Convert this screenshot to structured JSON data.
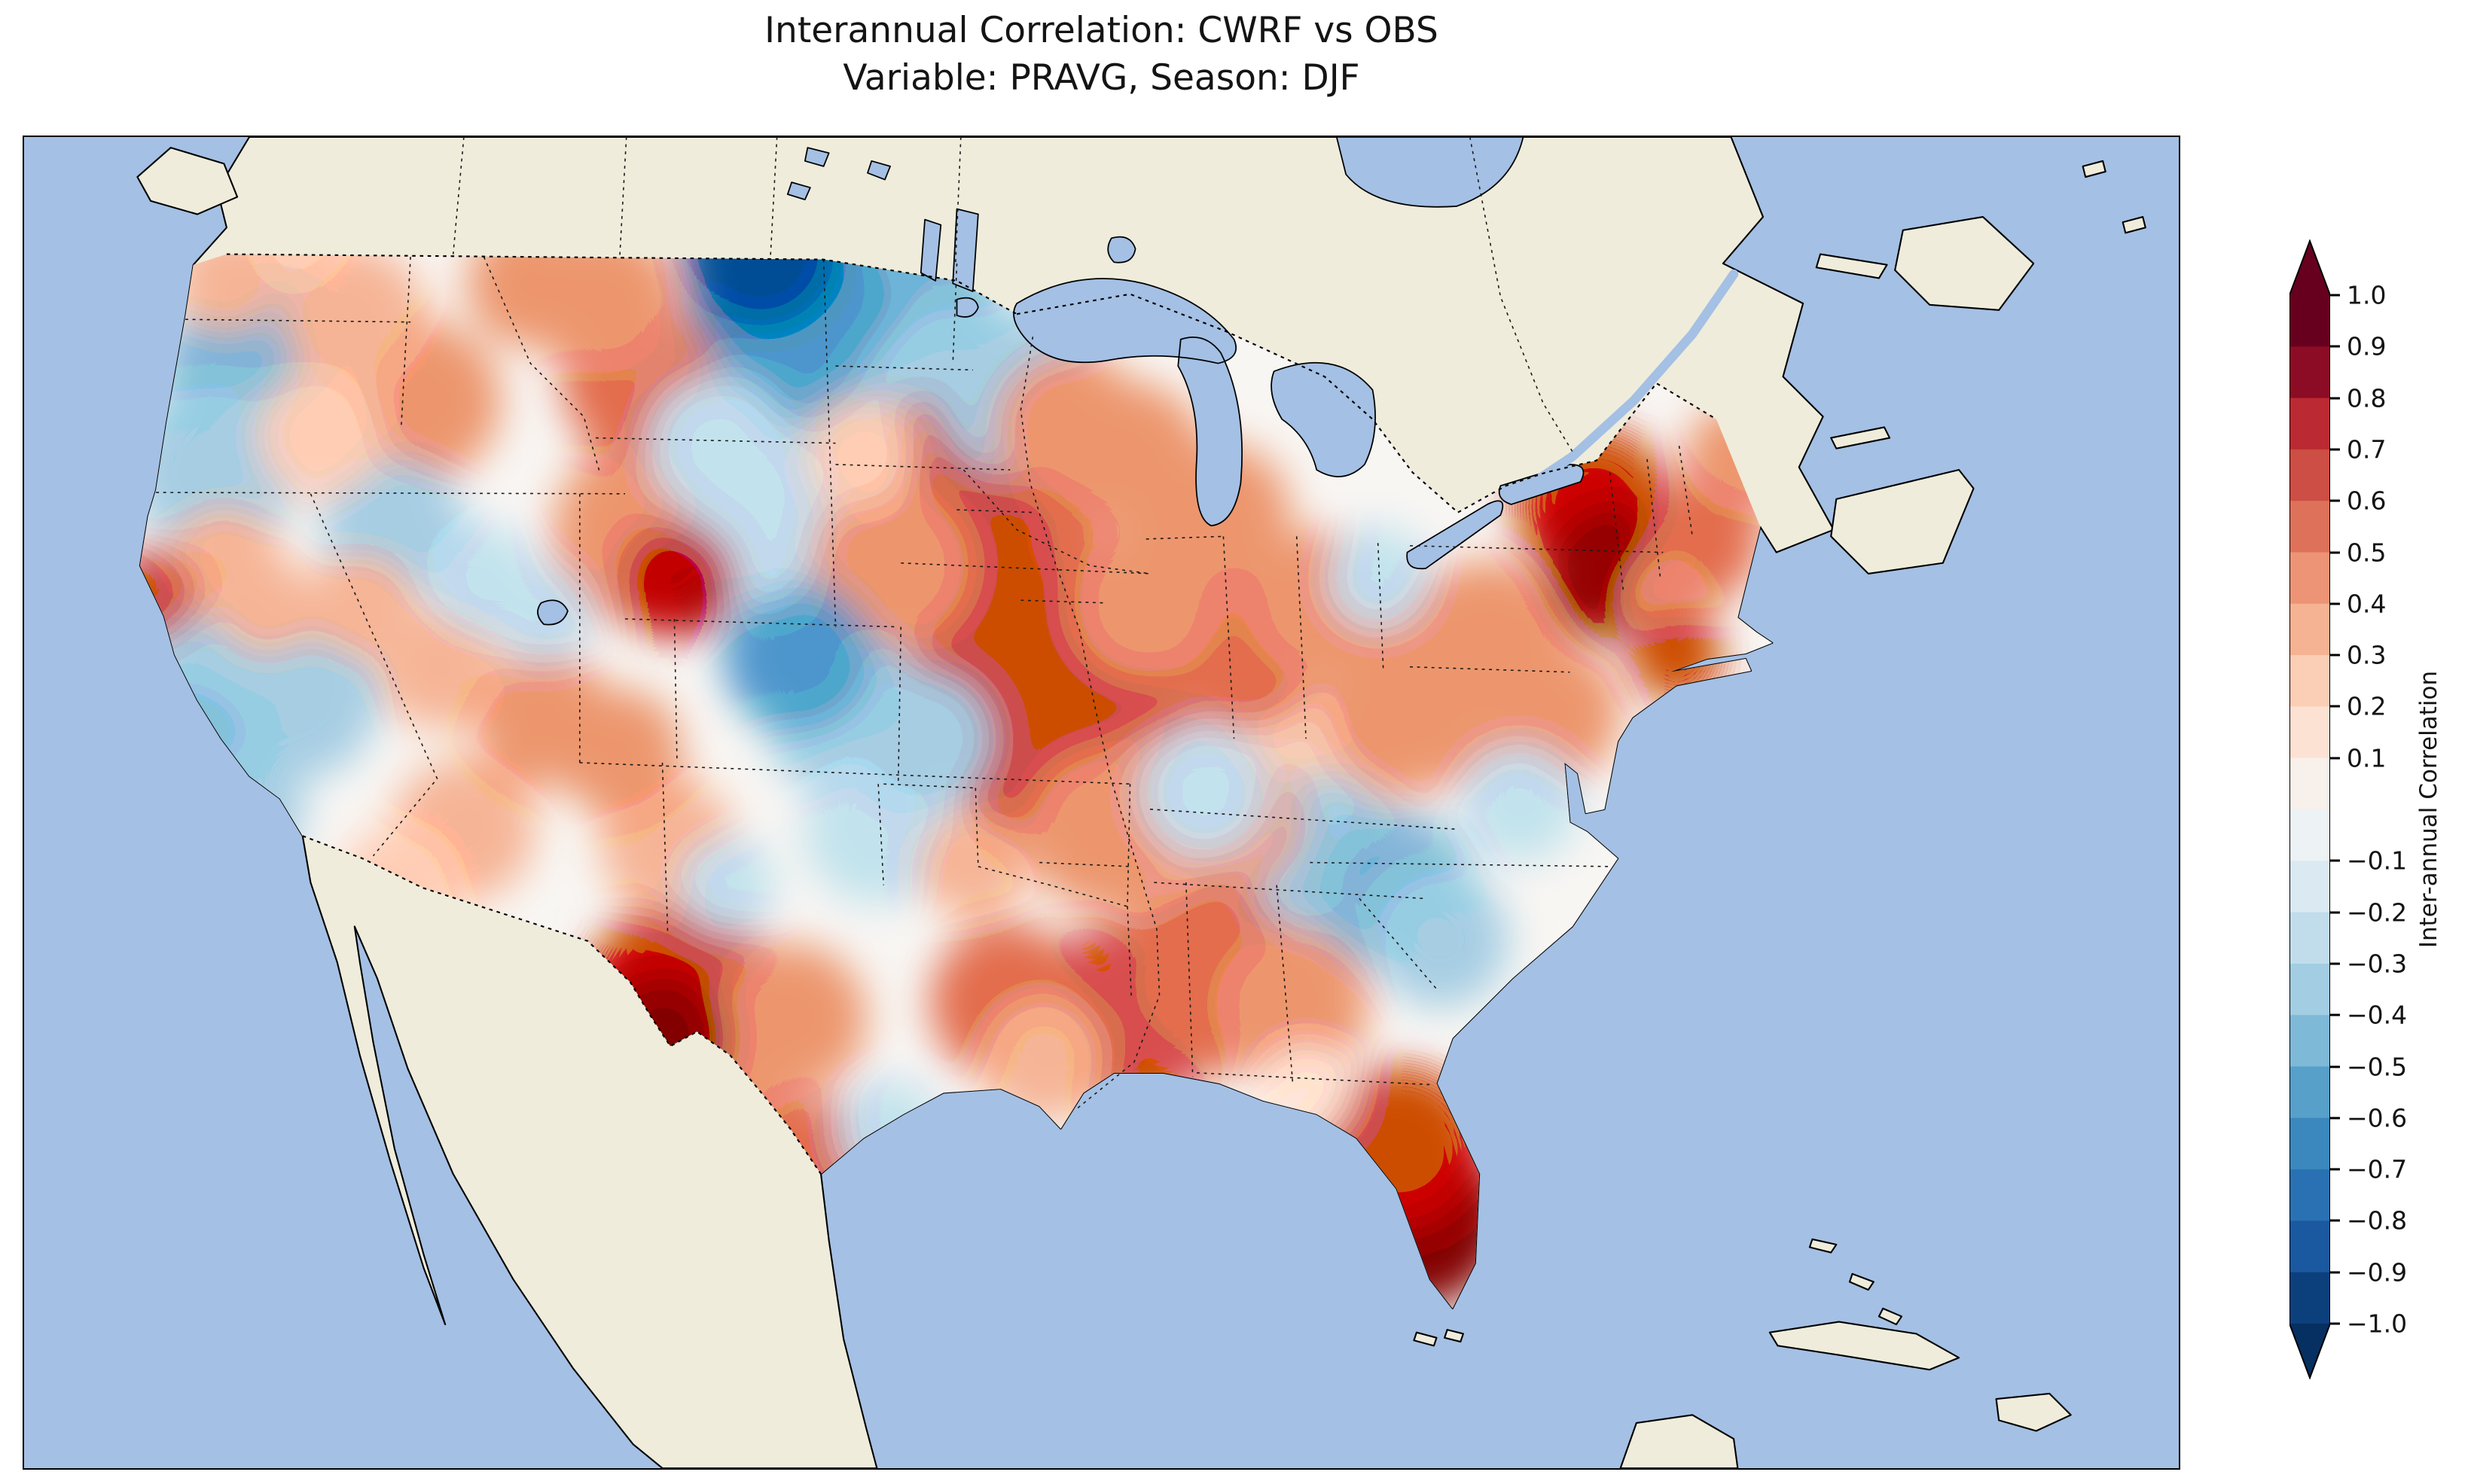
{
  "figure": {
    "title_line1": "Interannual Correlation: CWRF vs OBS",
    "title_line2": "Variable: PRAVG, Season: DJF"
  },
  "colorbar": {
    "label": "Inter-annual Correlation",
    "ticks": [
      {
        "label": "1.0",
        "v": 1.0
      },
      {
        "label": "0.9",
        "v": 0.9
      },
      {
        "label": "0.8",
        "v": 0.8
      },
      {
        "label": "0.7",
        "v": 0.7
      },
      {
        "label": "0.6",
        "v": 0.6
      },
      {
        "label": "0.5",
        "v": 0.5
      },
      {
        "label": "0.4",
        "v": 0.4
      },
      {
        "label": "0.3",
        "v": 0.3
      },
      {
        "label": "0.2",
        "v": 0.2
      },
      {
        "label": "0.1",
        "v": 0.1
      },
      {
        "label": "−0.1",
        "v": -0.1
      },
      {
        "label": "−0.2",
        "v": -0.2
      },
      {
        "label": "−0.3",
        "v": -0.3
      },
      {
        "label": "−0.4",
        "v": -0.4
      },
      {
        "label": "−0.5",
        "v": -0.5
      },
      {
        "label": "−0.6",
        "v": -0.6
      },
      {
        "label": "−0.7",
        "v": -0.7
      },
      {
        "label": "−0.8",
        "v": -0.8
      },
      {
        "label": "−0.9",
        "v": -0.9
      },
      {
        "label": "−1.0",
        "v": -1.0
      }
    ],
    "segment_colors": [
      "#67001f",
      "#8c0c25",
      "#bb2a33",
      "#cd4e44",
      "#de715a",
      "#ec9475",
      "#f6b393",
      "#fbceb6",
      "#fce2d3",
      "#f8f0eb",
      "#edf2f5",
      "#dbe9f2",
      "#c1ddec",
      "#a2cde3",
      "#7eb9d7",
      "#57a0ca",
      "#3a88bd",
      "#2971b2",
      "#1a599f",
      "#0c407c"
    ],
    "extend_over_color": "#67001f",
    "extend_under_color": "#053061"
  },
  "map": {
    "ocean_color": "#a4c0e4",
    "land_color": "#efecdb",
    "field_base_color": "#f8f6f3"
  },
  "chart_data": {
    "type": "heatmap",
    "title": "Interannual Correlation: CWRF vs OBS",
    "subtitle": "Variable: PRAVG, Season: DJF",
    "comparison": "CWRF vs OBS",
    "variable": "PRAVG",
    "season": "DJF",
    "region": "Continental United States",
    "colormap": "RdBu_r",
    "value_range": [
      -1.0,
      1.0
    ],
    "level_step": 0.1,
    "colorbar_label": "Inter-annual Correlation",
    "notable_regions": [
      {
        "region": "South Florida",
        "value": 0.9
      },
      {
        "region": "West Texas / Big Bend",
        "value": 0.85
      },
      {
        "region": "Coastal New York / southern New England",
        "value": 0.8
      },
      {
        "region": "Northern Colorado / Wyoming border",
        "value": 0.75
      },
      {
        "region": "Nebraska–Iowa central Midwest",
        "value": 0.7
      },
      {
        "region": "Missouri / Ozarks",
        "value": 0.65
      },
      {
        "region": "Northern Montana at US–Canada border",
        "value": -0.85
      },
      {
        "region": "Northern Plains / Dakotas",
        "value": -0.45
      },
      {
        "region": "Pacific Northwest coast",
        "value": -0.4
      },
      {
        "region": "California Central Valley and coast",
        "value": -0.35
      },
      {
        "region": "Carolinas coast",
        "value": -0.4
      },
      {
        "region": "Central Colorado–Nebraska border",
        "value": -0.5
      }
    ],
    "blobs_xyrv": [
      [
        152,
        107,
        28,
        0.35
      ],
      [
        205,
        78,
        24,
        0.3
      ],
      [
        181,
        181,
        55,
        -0.4
      ],
      [
        143,
        250,
        45,
        -0.35
      ],
      [
        248,
        135,
        38,
        0.4
      ],
      [
        299,
        198,
        42,
        0.45
      ],
      [
        222,
        224,
        34,
        0.3
      ],
      [
        96,
        344,
        24,
        0.7
      ],
      [
        150,
        320,
        30,
        0.35
      ],
      [
        205,
        420,
        44,
        -0.35
      ],
      [
        141,
        410,
        36,
        -0.35
      ],
      [
        118,
        465,
        36,
        -0.4
      ],
      [
        165,
        505,
        32,
        -0.3
      ],
      [
        183,
        352,
        26,
        0.35
      ],
      [
        277,
        295,
        38,
        -0.3
      ],
      [
        254,
        352,
        28,
        0.35
      ],
      [
        312,
        400,
        32,
        0.4
      ],
      [
        345,
        333,
        30,
        -0.25
      ],
      [
        390,
        360,
        26,
        -0.25
      ],
      [
        390,
        437,
        36,
        0.5
      ],
      [
        446,
        462,
        34,
        0.45
      ],
      [
        330,
        520,
        38,
        0.4
      ],
      [
        282,
        562,
        32,
        0.25
      ],
      [
        483,
        532,
        36,
        0.4
      ],
      [
        527,
        562,
        26,
        -0.2
      ],
      [
        553,
        86,
        42,
        -0.85
      ],
      [
        576,
        135,
        55,
        -0.5
      ],
      [
        640,
        150,
        68,
        -0.45
      ],
      [
        700,
        205,
        55,
        -0.35
      ],
      [
        748,
        195,
        45,
        -0.3
      ],
      [
        600,
        250,
        70,
        -0.2
      ],
      [
        435,
        124,
        40,
        0.5
      ],
      [
        380,
        110,
        34,
        0.45
      ],
      [
        463,
        185,
        42,
        0.55
      ],
      [
        520,
        232,
        38,
        -0.25
      ],
      [
        491,
        333,
        30,
        0.75
      ],
      [
        470,
        297,
        52,
        0.5
      ],
      [
        545,
        300,
        36,
        -0.25
      ],
      [
        581,
        390,
        40,
        -0.5
      ],
      [
        616,
        432,
        44,
        -0.35
      ],
      [
        628,
        237,
        30,
        0.25
      ],
      [
        690,
        272,
        55,
        0.7
      ],
      [
        728,
        312,
        58,
        0.55
      ],
      [
        652,
        322,
        45,
        0.45
      ],
      [
        785,
        218,
        40,
        0.45
      ],
      [
        830,
        240,
        40,
        0.5
      ],
      [
        897,
        283,
        38,
        0.45
      ],
      [
        841,
        352,
        42,
        0.5
      ],
      [
        914,
        380,
        46,
        0.55
      ],
      [
        971,
        352,
        40,
        0.5
      ],
      [
        1016,
        332,
        28,
        -0.25
      ],
      [
        734,
        380,
        50,
        0.6
      ],
      [
        773,
        408,
        44,
        0.7
      ],
      [
        800,
        452,
        54,
        0.6
      ],
      [
        762,
        465,
        48,
        0.65
      ],
      [
        812,
        520,
        44,
        0.5
      ],
      [
        677,
        452,
        36,
        -0.3
      ],
      [
        641,
        520,
        40,
        -0.25
      ],
      [
        712,
        548,
        28,
        0.35
      ],
      [
        480,
        677,
        34,
        0.85
      ],
      [
        492,
        648,
        52,
        0.6
      ],
      [
        523,
        700,
        42,
        0.5
      ],
      [
        576,
        662,
        40,
        0.45
      ],
      [
        593,
        773,
        36,
        0.55
      ],
      [
        649,
        747,
        28,
        -0.2
      ],
      [
        739,
        650,
        42,
        0.55
      ],
      [
        766,
        692,
        34,
        0.35
      ],
      [
        830,
        660,
        50,
        0.6
      ],
      [
        892,
        632,
        50,
        0.55
      ],
      [
        950,
        652,
        42,
        0.45
      ],
      [
        1044,
        812,
        48,
        0.9
      ],
      [
        1032,
        760,
        44,
        0.6
      ],
      [
        962,
        716,
        26,
        0.2
      ],
      [
        900,
        562,
        55,
        0.3
      ],
      [
        886,
        492,
        36,
        -0.2
      ],
      [
        971,
        537,
        42,
        -0.3
      ],
      [
        1028,
        566,
        42,
        -0.4
      ],
      [
        1063,
        603,
        36,
        -0.3
      ],
      [
        1122,
        500,
        32,
        -0.2
      ],
      [
        852,
        500,
        40,
        0.5
      ],
      [
        905,
        512,
        38,
        0.45
      ],
      [
        1040,
        430,
        45,
        0.5
      ],
      [
        1100,
        382,
        46,
        0.5
      ],
      [
        1145,
        432,
        38,
        0.45
      ],
      [
        1197,
        328,
        36,
        0.8
      ],
      [
        1178,
        278,
        42,
        0.6
      ],
      [
        1240,
        390,
        24,
        0.7
      ],
      [
        1258,
        304,
        32,
        0.55
      ],
      [
        1288,
        242,
        30,
        0.5
      ],
      [
        1232,
        347,
        26,
        0.45
      ],
      [
        965,
        480,
        48,
        0.25
      ]
    ]
  }
}
